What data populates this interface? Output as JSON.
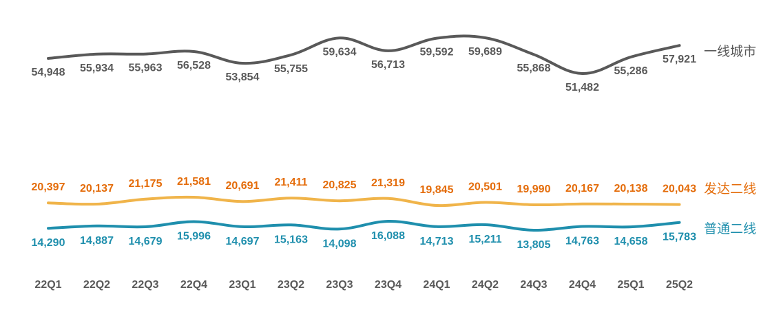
{
  "chart_data": {
    "type": "line",
    "title": "",
    "xlabel": "",
    "ylabel": "",
    "categories": [
      "22Q1",
      "22Q2",
      "22Q3",
      "22Q4",
      "23Q1",
      "23Q2",
      "23Q3",
      "23Q4",
      "24Q1",
      "24Q2",
      "24Q3",
      "24Q4",
      "25Q1",
      "25Q2"
    ],
    "series": [
      {
        "name": "一线城市",
        "color": "#595959",
        "values": [
          54948,
          55934,
          55963,
          56528,
          53854,
          55755,
          59634,
          56713,
          59592,
          59689,
          55868,
          51482,
          55286,
          57921
        ],
        "labels": [
          "54,948",
          "55,934",
          "55,963",
          "56,528",
          "53,854",
          "55,755",
          "59,634",
          "56,713",
          "59,592",
          "59,689",
          "55,868",
          "51,482",
          "55,286",
          "57,921"
        ]
      },
      {
        "name": "发达二线",
        "color": "#f0b44a",
        "label_color": "#e46c0a",
        "values": [
          20397,
          20137,
          21175,
          21581,
          20691,
          21411,
          20825,
          21319,
          19845,
          20501,
          19990,
          20167,
          20138,
          20043
        ],
        "labels": [
          "20,397",
          "20,137",
          "21,175",
          "21,581",
          "20,691",
          "21,411",
          "20,825",
          "21,319",
          "19,845",
          "20,501",
          "19,990",
          "20,167",
          "20,138",
          "20,043"
        ]
      },
      {
        "name": "普通二线",
        "color": "#1f8fad",
        "label_color": "#1f8fad",
        "values": [
          14290,
          14887,
          14679,
          15996,
          14697,
          15163,
          14098,
          16088,
          14713,
          15211,
          13805,
          14763,
          14658,
          15783
        ],
        "labels": [
          "14,290",
          "14,887",
          "14,679",
          "15,996",
          "14,697",
          "15,163",
          "14,098",
          "16,088",
          "14,713",
          "15,211",
          "13,805",
          "14,763",
          "14,658",
          "15,783"
        ]
      }
    ],
    "legend": "right",
    "grid": false
  }
}
